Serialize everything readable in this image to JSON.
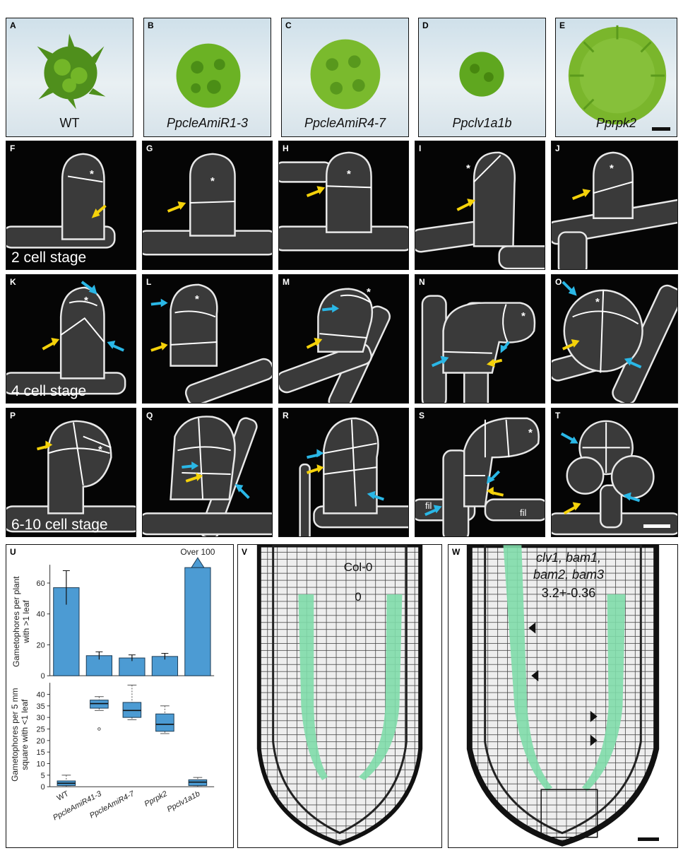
{
  "top_row": [
    {
      "letter": "A",
      "label": "WT",
      "italic": false
    },
    {
      "letter": "B",
      "label": "PpcleAmiR1-3",
      "italic": true
    },
    {
      "letter": "C",
      "label": "PpcleAmiR4-7",
      "italic": true
    },
    {
      "letter": "D",
      "label": "Ppclv1a1b",
      "italic": true
    },
    {
      "letter": "E",
      "label": "Pprpk2",
      "italic": true
    }
  ],
  "row_f": {
    "letters": [
      "F",
      "G",
      "H",
      "I",
      "J"
    ],
    "stage": "2 cell stage"
  },
  "row_k": {
    "letters": [
      "K",
      "L",
      "M",
      "N",
      "O"
    ],
    "stage": "4 cell stage"
  },
  "row_p": {
    "letters": [
      "P",
      "Q",
      "R",
      "S",
      "T"
    ],
    "stage": "6-10 cell stage"
  },
  "star": "*",
  "fil": "fil",
  "panel_u": {
    "letter": "U"
  },
  "panel_v": {
    "letter": "V",
    "genotype": "Col-0",
    "value": "0"
  },
  "panel_w": {
    "letter": "W",
    "genotype_lines": [
      "clv1, bam1,",
      "bam2, bam3"
    ],
    "value": "3.2+-0.36"
  },
  "colors": {
    "arrow_yellow": "#f5d20a",
    "arrow_blue": "#2ab7e6",
    "bar_blue": "#4c9bd3",
    "stele_green": "#7fdcaa"
  },
  "chart_data": [
    {
      "type": "bar",
      "ylabel": "Gametophores per plant with >1 leaf",
      "categories": [
        "WT",
        "PpcleAmiR41-3",
        "PpcleAmiR4-7",
        "Pprpk2",
        "Ppclv1a1b"
      ],
      "values": [
        57,
        13,
        11.5,
        12.5,
        70
      ],
      "errors": [
        11,
        2.5,
        2,
        2,
        0
      ],
      "ylim": [
        0,
        70
      ],
      "yticks": [
        0,
        20,
        40,
        60
      ],
      "annotation": "Over 100"
    },
    {
      "type": "box",
      "ylabel": "Gametophores per 5 mm square with <1 leaf",
      "categories": [
        "WT",
        "PpcleAmiR41-3",
        "PpcleAmiR4-7",
        "Pprpk2",
        "Ppclv1a1b"
      ],
      "boxes": [
        {
          "min": 0,
          "q1": 0.5,
          "median": 1.5,
          "q3": 2.5,
          "max": 5
        },
        {
          "min": 33,
          "q1": 34,
          "median": 36,
          "q3": 37.5,
          "max": 39,
          "outliers": [
            25
          ]
        },
        {
          "min": 29,
          "q1": 30,
          "median": 33,
          "q3": 36.5,
          "max": 44
        },
        {
          "min": 23,
          "q1": 24,
          "median": 27,
          "q3": 31.5,
          "max": 35
        },
        {
          "min": 0,
          "q1": 0.5,
          "median": 2,
          "q3": 3,
          "max": 4
        }
      ],
      "ylim": [
        0,
        45
      ],
      "yticks": [
        0,
        5,
        10,
        15,
        20,
        25,
        30,
        35,
        40
      ]
    }
  ]
}
